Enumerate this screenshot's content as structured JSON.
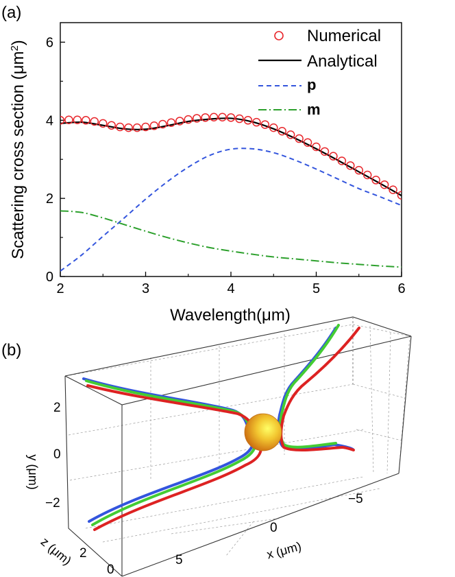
{
  "chart_data": [
    {
      "type": "line",
      "panel_label": "(a)",
      "xlabel": "Wavelength(μm)",
      "ylabel_main": "Scattering cross section (μm",
      "ylabel_sup": "2",
      "ylabel_end": ")",
      "xlim": [
        2,
        6
      ],
      "ylim": [
        0,
        6.5
      ],
      "xticks": [
        2,
        3,
        4,
        5,
        6
      ],
      "yticks": [
        0,
        2,
        4,
        6
      ],
      "x": [
        2.0,
        2.25,
        2.5,
        2.75,
        3.0,
        3.25,
        3.5,
        3.75,
        4.0,
        4.25,
        4.5,
        4.75,
        5.0,
        5.25,
        5.5,
        5.75,
        6.0
      ],
      "series": [
        {
          "name": "Numerical",
          "style": "circles",
          "color": "#e8262b",
          "x": [
            2.0,
            2.1,
            2.2,
            2.3,
            2.4,
            2.5,
            2.6,
            2.7,
            2.8,
            2.9,
            3.0,
            3.1,
            3.2,
            3.3,
            3.4,
            3.5,
            3.6,
            3.7,
            3.8,
            3.9,
            4.0,
            4.1,
            4.2,
            4.3,
            4.4,
            4.5,
            4.6,
            4.7,
            4.8,
            4.9,
            5.0,
            5.1,
            5.2,
            5.3,
            5.4,
            5.5,
            5.6,
            5.7,
            5.8,
            5.9,
            6.0
          ],
          "values": [
            4.0,
            4.01,
            4.01,
            4.0,
            3.97,
            3.92,
            3.87,
            3.83,
            3.81,
            3.81,
            3.83,
            3.86,
            3.9,
            3.94,
            3.98,
            4.02,
            4.05,
            4.07,
            4.08,
            4.08,
            4.07,
            4.04,
            4.0,
            3.95,
            3.89,
            3.81,
            3.72,
            3.63,
            3.53,
            3.43,
            3.32,
            3.2,
            3.08,
            2.96,
            2.84,
            2.72,
            2.6,
            2.47,
            2.35,
            2.22,
            2.08
          ]
        },
        {
          "name": "Analytical",
          "style": "solid",
          "color": "#000000",
          "values": [
            3.92,
            3.95,
            3.87,
            3.78,
            3.77,
            3.86,
            3.97,
            4.03,
            4.05,
            3.96,
            3.78,
            3.54,
            3.27,
            2.98,
            2.68,
            2.38,
            2.07
          ]
        },
        {
          "name": "p",
          "style": "dashed",
          "color": "#3355dd",
          "values": [
            0.14,
            0.55,
            1.03,
            1.5,
            1.98,
            2.42,
            2.8,
            3.1,
            3.26,
            3.27,
            3.17,
            2.98,
            2.75,
            2.5,
            2.25,
            2.04,
            1.82
          ]
        },
        {
          "name": "m",
          "style": "dashdot",
          "color": "#2ca02c",
          "values": [
            1.68,
            1.64,
            1.5,
            1.33,
            1.16,
            1.0,
            0.86,
            0.74,
            0.65,
            0.57,
            0.5,
            0.45,
            0.4,
            0.35,
            0.31,
            0.27,
            0.24
          ]
        }
      ]
    },
    {
      "type": "3d-trajectory",
      "panel_label": "(b)",
      "xlabel": "x (μm)",
      "ylabel": "y (μm)",
      "zlabel": "z (μm)",
      "xticks": [
        "5",
        "0",
        "−5"
      ],
      "yticks": [
        "2",
        "0",
        "−2"
      ],
      "zticks": [
        "2",
        "0"
      ],
      "series": [
        {
          "name": "blue trajectory",
          "color": "#3355dd"
        },
        {
          "name": "green trajectory",
          "color": "#44cc33"
        },
        {
          "name": "red trajectory",
          "color": "#dd2222"
        }
      ],
      "sphere_color": "#e8a020"
    }
  ]
}
